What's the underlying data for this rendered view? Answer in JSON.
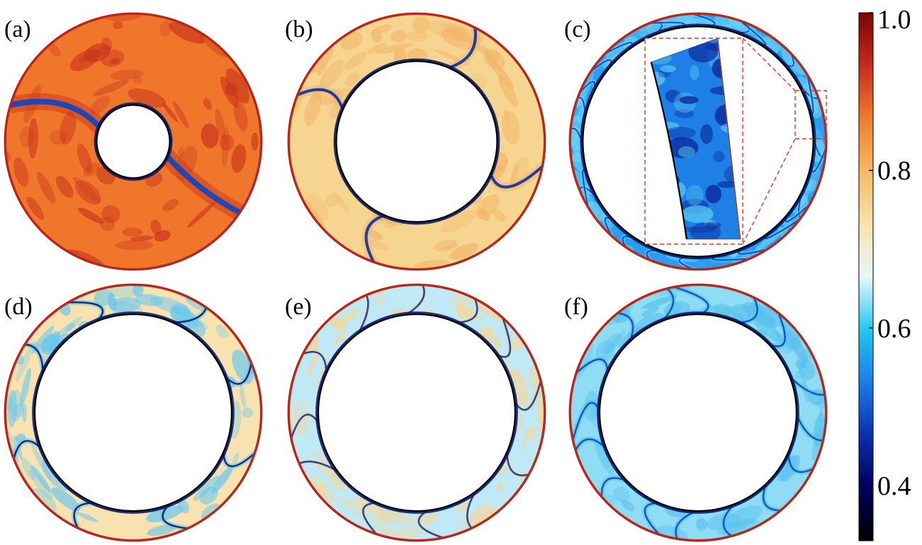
{
  "panels": [
    {
      "label": "(a)",
      "inner_ratio": 0.28,
      "base_color": "#f0762c",
      "accent_color": "#c9361c",
      "plume_color": "#0a46c8",
      "plume_count": 2
    },
    {
      "label": "(b)",
      "inner_ratio": 0.62,
      "base_color": "#f6d591",
      "accent_color": "#f2b66b",
      "plume_color": "#0a2fa6",
      "plume_count": 4
    },
    {
      "label": "(c)",
      "inner_ratio": 0.89,
      "base_color": "#2a9df0",
      "accent_color": "#6ed6f7",
      "plume_color": "#0b3fc0",
      "plume_count": 26
    },
    {
      "label": "(d)",
      "inner_ratio": 0.76,
      "base_color": "#f7e2b0",
      "accent_color": "#62c6f2",
      "plume_color": "#051e78",
      "plume_count": 8
    },
    {
      "label": "(e)",
      "inner_ratio": 0.76,
      "base_color": "#bfe9f6",
      "accent_color": "#f5d79c",
      "plume_color": "#0a3aa8",
      "plume_count": 12
    },
    {
      "label": "(f)",
      "inner_ratio": 0.76,
      "base_color": "#8fdcf5",
      "accent_color": "#57c1ec",
      "plume_color": "#0c4fb8",
      "plume_count": 16
    }
  ],
  "colorbar": {
    "ticks": [
      "1.0",
      "0.8",
      "0.6",
      "0.4"
    ],
    "tick_values": [
      1.0,
      0.8,
      0.6,
      0.4
    ],
    "range": [
      0.33,
      1.0
    ],
    "colors": [
      "#000000",
      "#00005a",
      "#0a2fb0",
      "#1c7ce8",
      "#23c7f0",
      "#e6f8fb",
      "#f6e4ad",
      "#f6ba63",
      "#ef7c2f",
      "#c72b1a",
      "#7a0403"
    ]
  },
  "zoom_inset": {
    "frame_color": "#e8302a",
    "inset_base": "#1e7fe6",
    "inset_dark": "#0a2a9c",
    "inset_light": "#58c9f2"
  }
}
